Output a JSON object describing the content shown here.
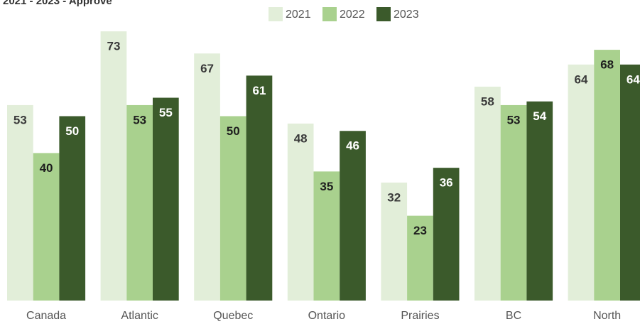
{
  "chart_data": {
    "type": "bar",
    "title": "2021 - 2023 - Approve",
    "categories": [
      "Canada",
      "Atlantic",
      "Quebec",
      "Ontario",
      "Prairies",
      "BC",
      "North"
    ],
    "series": [
      {
        "name": "2021",
        "color": "#e2eed9",
        "label_color": "#3a3a3a",
        "values": [
          53,
          73,
          67,
          48,
          32,
          58,
          64
        ]
      },
      {
        "name": "2022",
        "color": "#a9d18e",
        "label_color": "#1e1e1e",
        "values": [
          40,
          53,
          50,
          35,
          23,
          53,
          68
        ]
      },
      {
        "name": "2023",
        "color": "#3b5a2b",
        "label_color": "#ffffff",
        "values": [
          50,
          55,
          61,
          46,
          36,
          54,
          64
        ]
      }
    ],
    "legend": "top"
  }
}
